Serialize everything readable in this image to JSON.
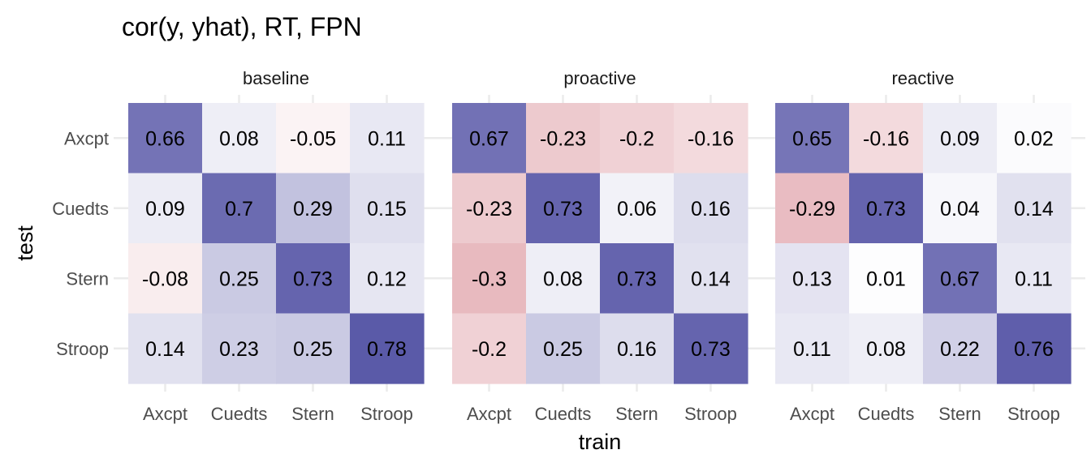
{
  "chart_data": {
    "type": "heatmap",
    "title": "cor(y, yhat), RT, FPN",
    "xlabel": "train",
    "ylabel": "test",
    "x_categories": [
      "Axcpt",
      "Cuedts",
      "Stern",
      "Stroop"
    ],
    "y_categories": [
      "Axcpt",
      "Cuedts",
      "Stern",
      "Stroop"
    ],
    "color_scale": {
      "low": "#b2182b",
      "mid": "#ffffff",
      "high": "#2c2b90"
    },
    "grid": true,
    "facets": [
      {
        "name": "baseline",
        "values": [
          [
            0.66,
            0.08,
            -0.05,
            0.11
          ],
          [
            0.09,
            0.7,
            0.29,
            0.15
          ],
          [
            -0.08,
            0.25,
            0.73,
            0.12
          ],
          [
            0.14,
            0.23,
            0.25,
            0.78
          ]
        ],
        "labels": [
          [
            "0.66",
            "0.08",
            "-0.05",
            "0.11"
          ],
          [
            "0.09",
            "0.7",
            "0.29",
            "0.15"
          ],
          [
            "-0.08",
            "0.25",
            "0.73",
            "0.12"
          ],
          [
            "0.14",
            "0.23",
            "0.25",
            "0.78"
          ]
        ]
      },
      {
        "name": "proactive",
        "values": [
          [
            0.67,
            -0.23,
            -0.2,
            -0.16
          ],
          [
            -0.23,
            0.73,
            0.06,
            0.16
          ],
          [
            -0.3,
            0.08,
            0.73,
            0.14
          ],
          [
            -0.2,
            0.25,
            0.16,
            0.73
          ]
        ],
        "labels": [
          [
            "0.67",
            "-0.23",
            "-0.2",
            "-0.16"
          ],
          [
            "-0.23",
            "0.73",
            "0.06",
            "0.16"
          ],
          [
            "-0.3",
            "0.08",
            "0.73",
            "0.14"
          ],
          [
            "-0.2",
            "0.25",
            "0.16",
            "0.73"
          ]
        ]
      },
      {
        "name": "reactive",
        "values": [
          [
            0.65,
            -0.16,
            0.09,
            0.02
          ],
          [
            -0.29,
            0.73,
            0.04,
            0.14
          ],
          [
            0.13,
            0.01,
            0.67,
            0.11
          ],
          [
            0.11,
            0.08,
            0.22,
            0.76
          ]
        ],
        "labels": [
          [
            "0.65",
            "-0.16",
            "0.09",
            "0.02"
          ],
          [
            "-0.29",
            "0.73",
            "0.04",
            "0.14"
          ],
          [
            "0.13",
            "0.01",
            "0.67",
            "0.11"
          ],
          [
            "0.11",
            "0.08",
            "0.22",
            "0.76"
          ]
        ]
      }
    ]
  }
}
